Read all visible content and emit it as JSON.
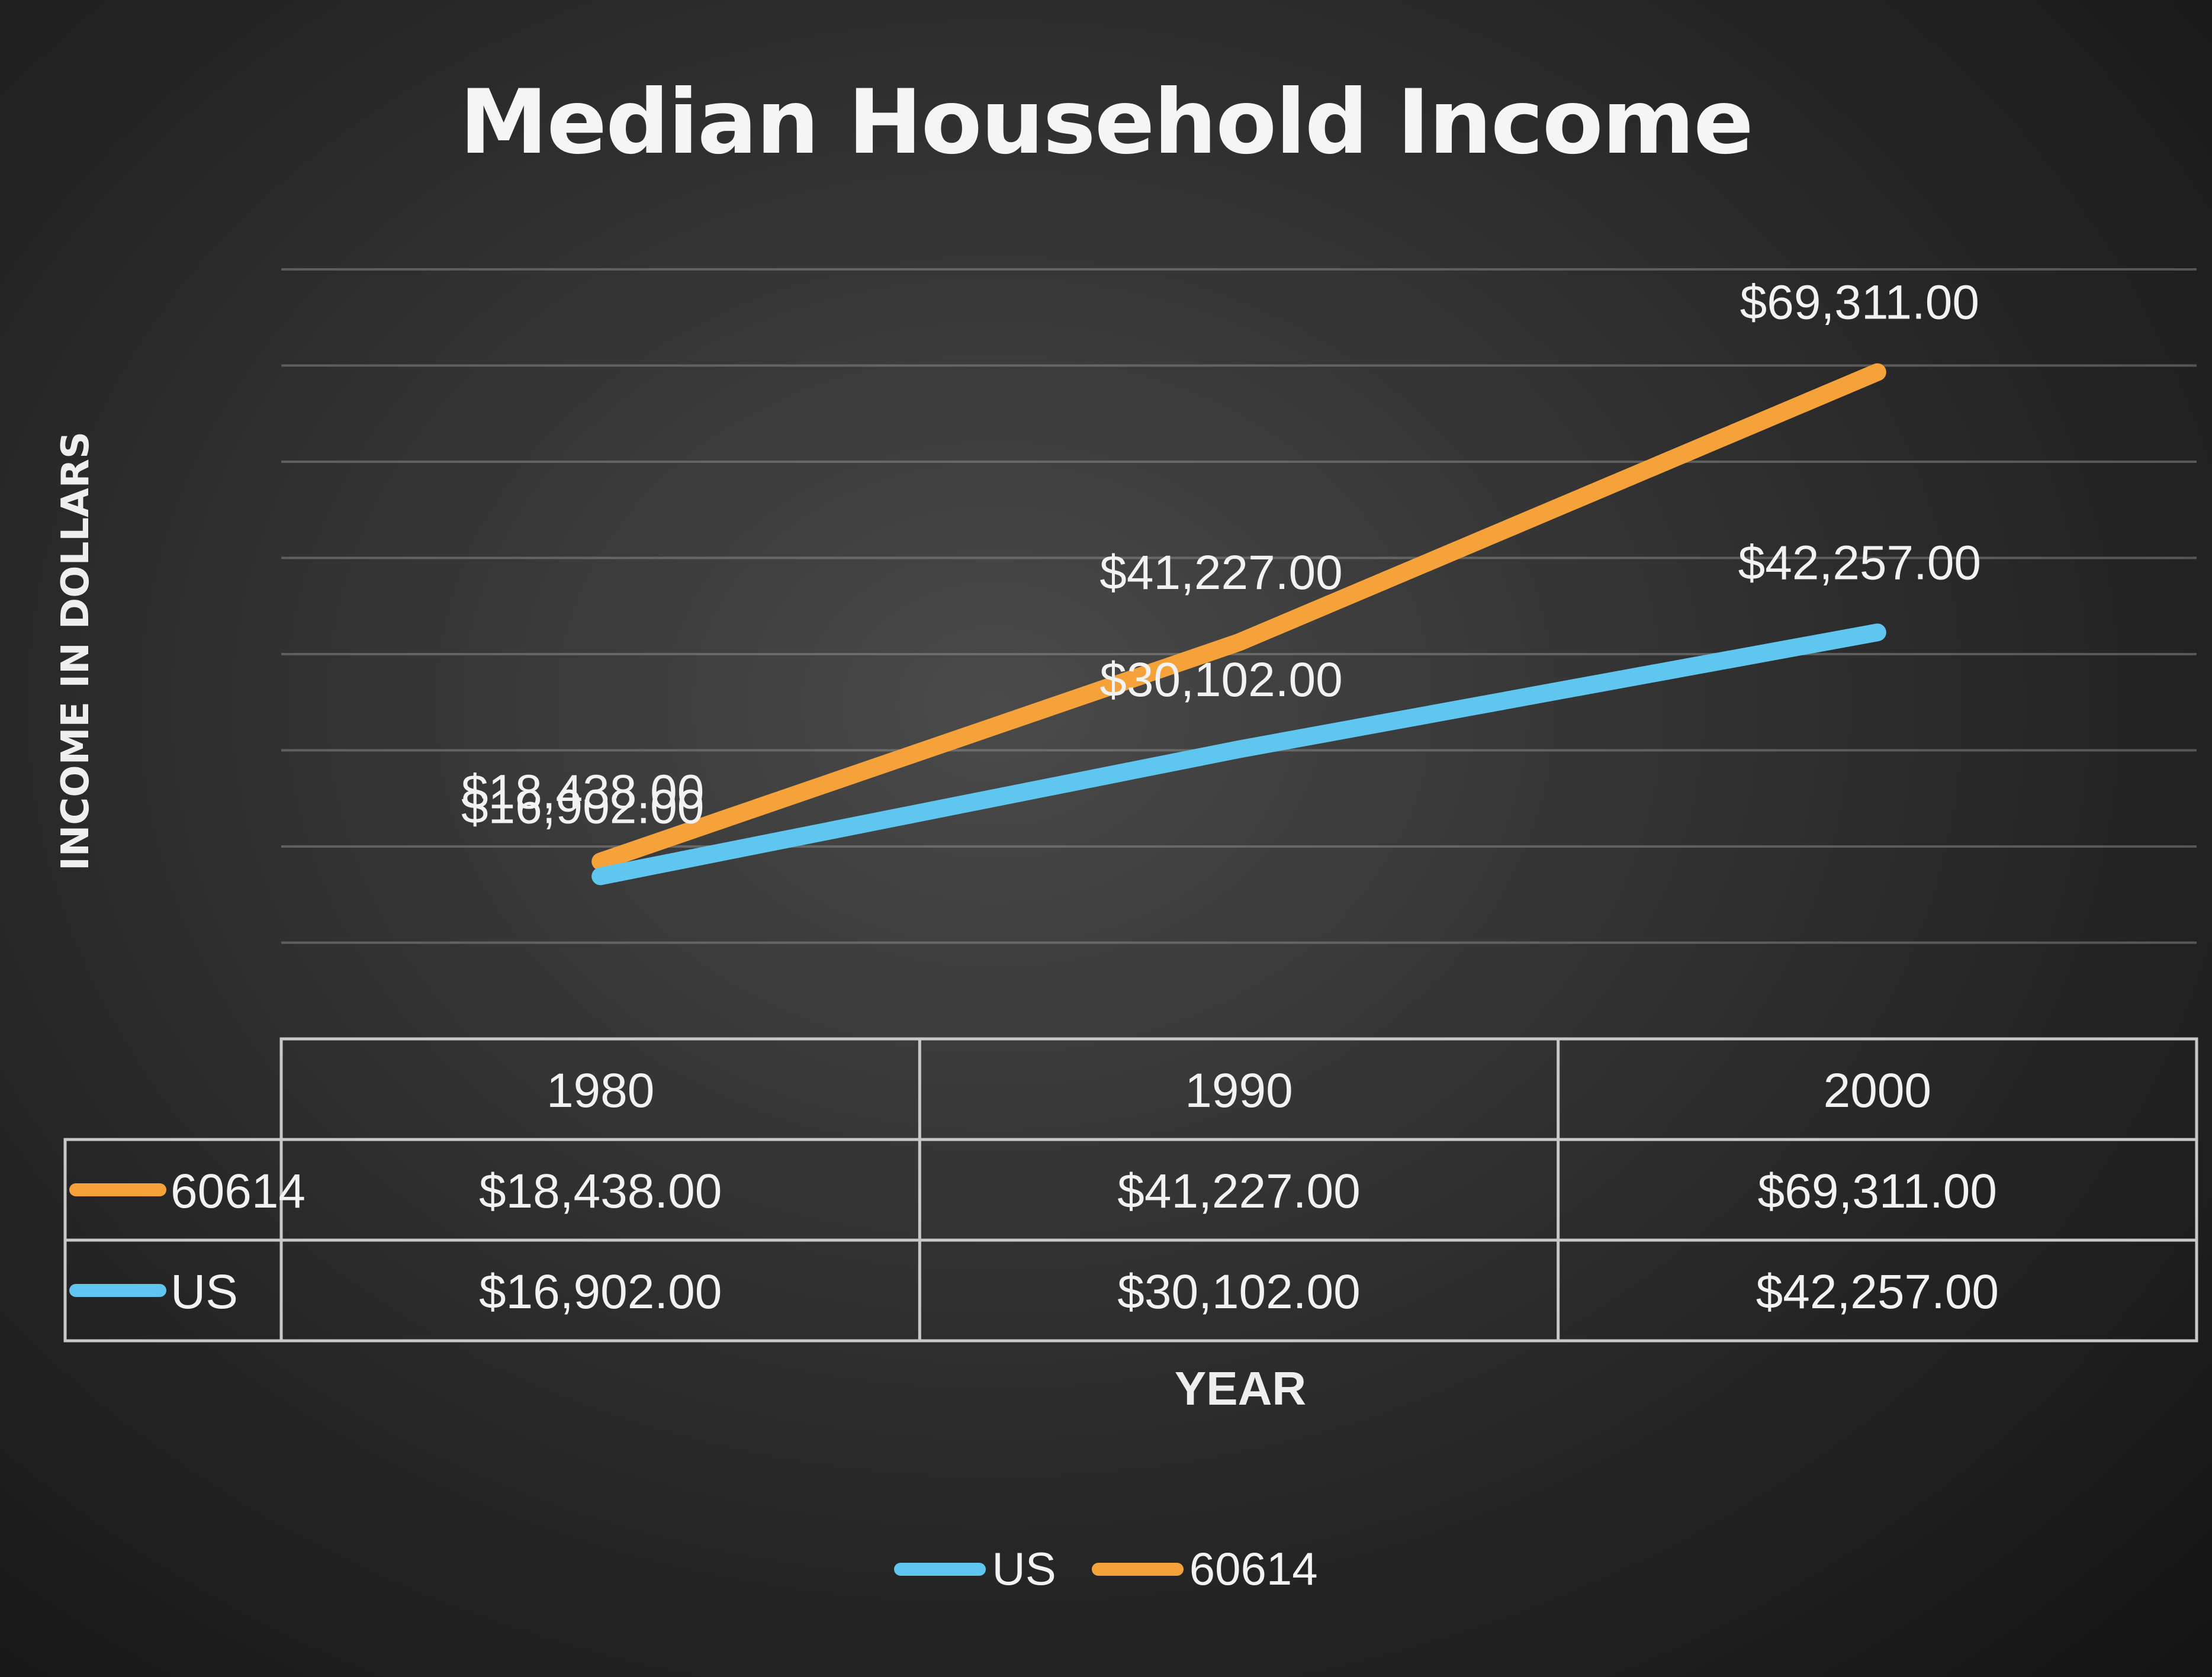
{
  "colors": {
    "us": "#5fc6f0",
    "zip": "#f5a23a"
  },
  "chart_data": {
    "type": "line",
    "title": "Median Household Income",
    "xlabel": "YEAR",
    "ylabel": "INCOME IN DOLLARS",
    "categories": [
      "1980",
      "1990",
      "2000"
    ],
    "series": [
      {
        "name": "60614",
        "values": [
          18438,
          41227,
          69311
        ],
        "labels": [
          "$18,438.00",
          "$41,227.00",
          "$69,311.00"
        ],
        "color": "#f5a23a"
      },
      {
        "name": "US",
        "values": [
          16902,
          30102,
          42257
        ],
        "labels": [
          "$16,902.00",
          "$30,102.00",
          "$42,257.00"
        ],
        "color": "#5fc6f0"
      }
    ],
    "ylim": [
      0,
      80000
    ],
    "grid": true,
    "legend_position": "bottom",
    "legend_order": [
      "US",
      "60614"
    ],
    "data_table": true
  }
}
